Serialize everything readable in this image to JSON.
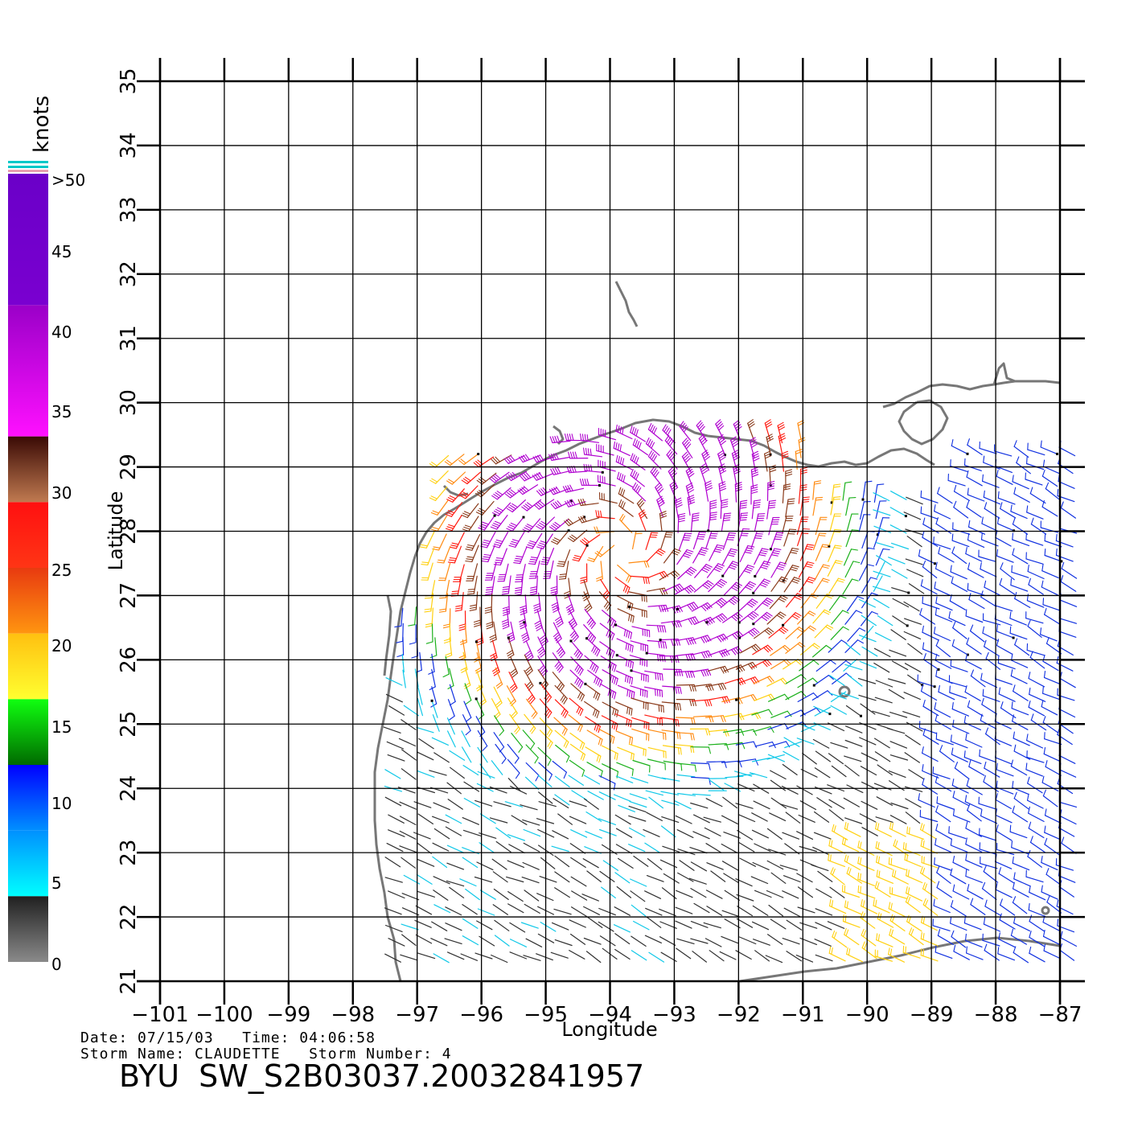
{
  "colorbar": {
    "unit_label": "knots",
    "labels": [
      ">50",
      "45",
      "40",
      "35",
      "30",
      "25",
      "20",
      "15",
      "10",
      "5",
      "0"
    ],
    "bands": [
      {
        "range": [
          50,
          60
        ],
        "top": "#6a00c8",
        "bottom": "#7a00d0"
      },
      {
        "range": [
          40,
          50
        ],
        "top": "#9a00c8",
        "bottom": "#ff10ff"
      },
      {
        "range": [
          35,
          40
        ],
        "top": "#3a0a05",
        "bottom": "#c07a50"
      },
      {
        "range": [
          30,
          35
        ],
        "top": "#ff1010",
        "bottom": "#ff3515"
      },
      {
        "range": [
          25,
          30
        ],
        "top": "#e83a10",
        "bottom": "#ff9510"
      },
      {
        "range": [
          20,
          25
        ],
        "top": "#ffc010",
        "bottom": "#ffff30"
      },
      {
        "range": [
          15,
          20
        ],
        "top": "#10ff10",
        "bottom": "#006a00"
      },
      {
        "range": [
          10,
          15
        ],
        "top": "#0000ff",
        "bottom": "#0090ff"
      },
      {
        "range": [
          5,
          10
        ],
        "top": "#0090ff",
        "bottom": "#00ffff"
      },
      {
        "range": [
          0,
          5
        ],
        "top": "#202020",
        "bottom": "#8a8a8a"
      }
    ]
  },
  "map": {
    "xlabel": "Longitude",
    "ylabel": "Latitude",
    "lon_range": [
      -101,
      -86.6
    ],
    "lat_range": [
      21,
      35
    ],
    "lon_ticks": [
      "-101",
      "-100",
      "-99",
      "-98",
      "-97",
      "-96",
      "-95",
      "-94",
      "-93",
      "-92",
      "-91",
      "-90",
      "-89",
      "-88",
      "-87"
    ],
    "lat_ticks": [
      "21",
      "22",
      "23",
      "24",
      "25",
      "26",
      "27",
      "28",
      "29",
      "30",
      "31",
      "32",
      "33",
      "34",
      "35"
    ],
    "grid": true,
    "coastline_color": "#777777",
    "storm_center": {
      "lon": -93.8,
      "lat": 27.7
    }
  },
  "footer": {
    "date_line": "Date: 07/15/03   Time: 04:06:58",
    "storm_line": "Storm Name: CLAUDETTE   Storm Number: 4",
    "title": "BYU  SW_S2B03037.20032841957"
  }
}
